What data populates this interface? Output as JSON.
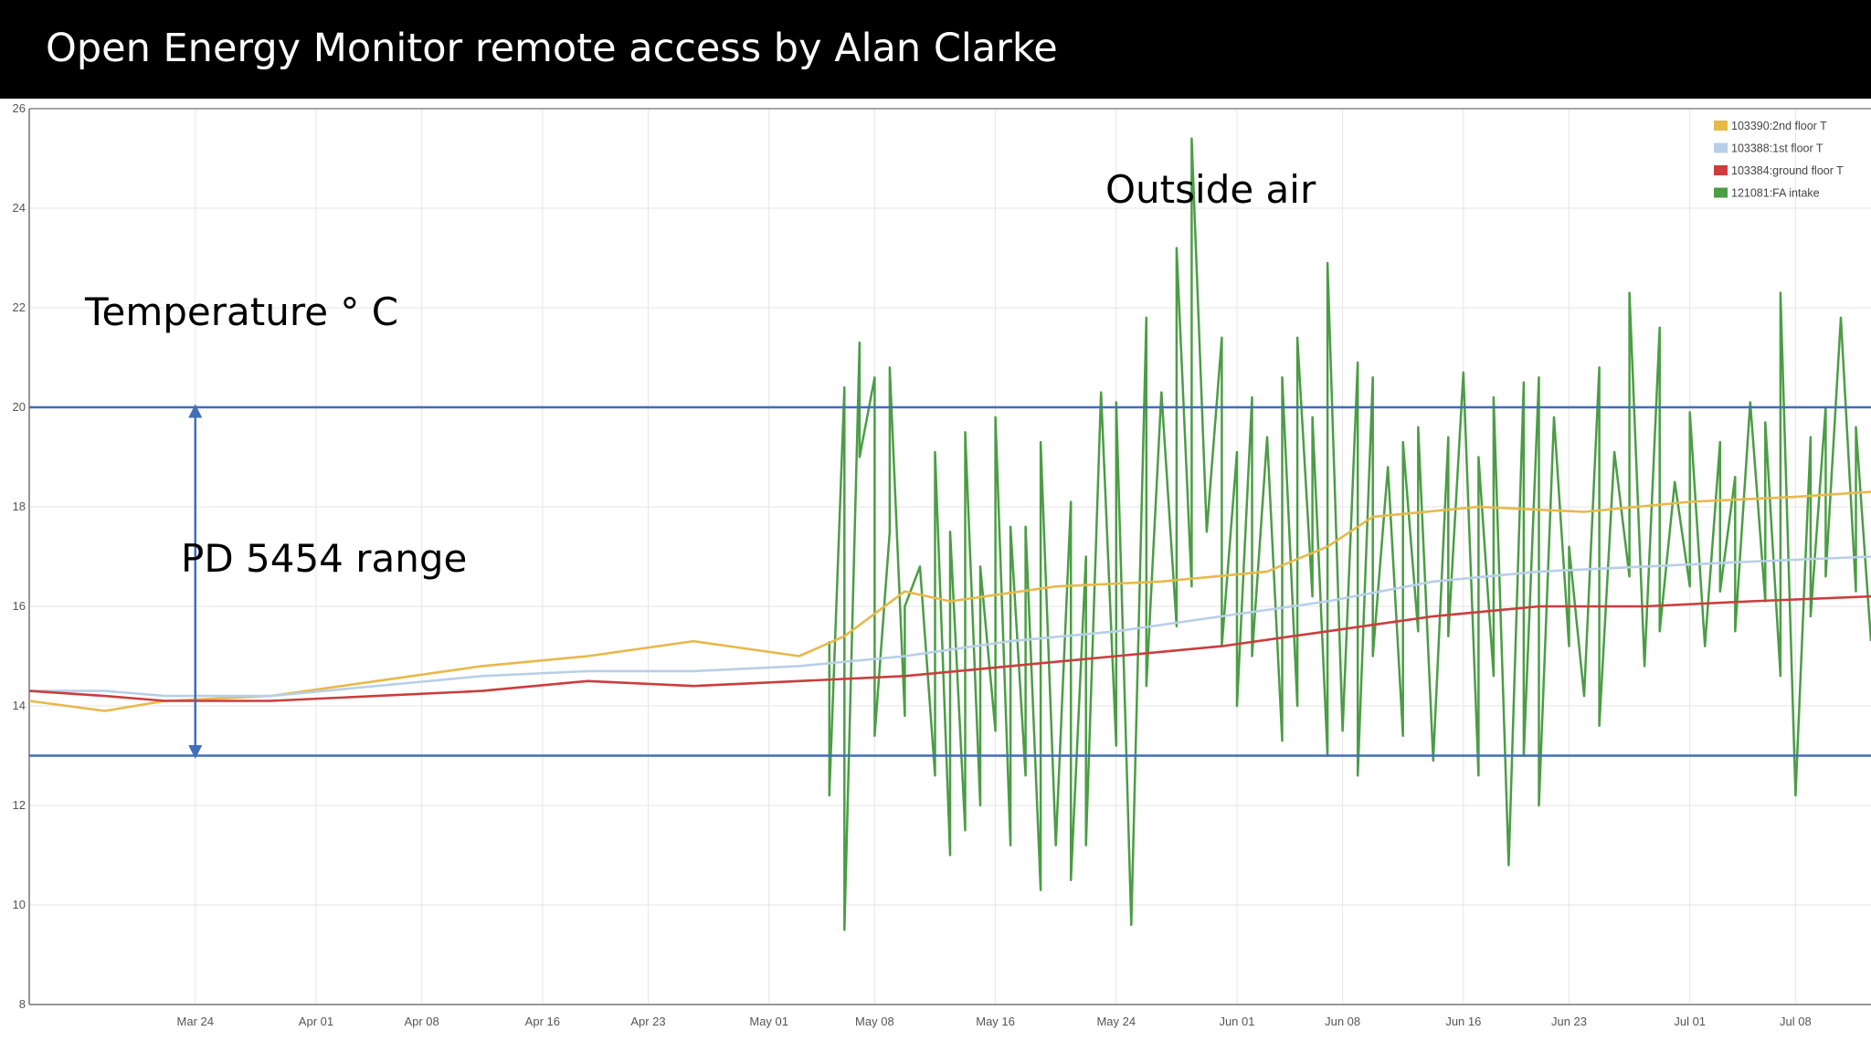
{
  "slide": {
    "title": "Open Energy Monitor remote access by Alan Clarke"
  },
  "colors": {
    "background": "#ffffff",
    "title_bar": "#000000",
    "grid": "#e6e6e6",
    "reference_lines": "#3f6fb6"
  },
  "chart_data": {
    "type": "line",
    "xaxis_type": "date",
    "xlim": [
      "2015-03-13",
      "2015-07-13"
    ],
    "ylim": [
      8,
      26
    ],
    "grid": true,
    "legend_position": "top-right",
    "x_ticks": [
      {
        "date": "2015-03-24",
        "label": "Mar 24"
      },
      {
        "date": "2015-04-01",
        "label": "Apr 01"
      },
      {
        "date": "2015-04-08",
        "label": "Apr 08"
      },
      {
        "date": "2015-04-16",
        "label": "Apr 16"
      },
      {
        "date": "2015-04-23",
        "label": "Apr 23"
      },
      {
        "date": "2015-05-01",
        "label": "May 01"
      },
      {
        "date": "2015-05-08",
        "label": "May 08"
      },
      {
        "date": "2015-05-16",
        "label": "May 16"
      },
      {
        "date": "2015-05-24",
        "label": "May 24"
      },
      {
        "date": "2015-06-01",
        "label": "Jun 01"
      },
      {
        "date": "2015-06-08",
        "label": "Jun 08"
      },
      {
        "date": "2015-06-16",
        "label": "Jun 16"
      },
      {
        "date": "2015-06-23",
        "label": "Jun 23"
      },
      {
        "date": "2015-07-01",
        "label": "Jul 01"
      },
      {
        "date": "2015-07-08",
        "label": "Jul 08"
      }
    ],
    "y_ticks": [
      "8",
      "10",
      "12",
      "14",
      "16",
      "18",
      "20",
      "22",
      "24",
      "26"
    ],
    "series": [
      {
        "name": "103390:2nd floor T",
        "color": "#e8b84a",
        "x": [
          "2015-03-13",
          "2015-03-18",
          "2015-03-22",
          "2015-03-29",
          "2015-04-05",
          "2015-04-12",
          "2015-04-19",
          "2015-04-26",
          "2015-05-03",
          "2015-05-06",
          "2015-05-10",
          "2015-05-13",
          "2015-05-20",
          "2015-05-27",
          "2015-06-03",
          "2015-06-07",
          "2015-06-10",
          "2015-06-17",
          "2015-06-24",
          "2015-07-01",
          "2015-07-08",
          "2015-07-13"
        ],
        "y": [
          14.1,
          13.9,
          14.1,
          14.2,
          14.5,
          14.8,
          15.0,
          15.3,
          15.0,
          15.4,
          16.3,
          16.1,
          16.4,
          16.5,
          16.7,
          17.2,
          17.8,
          18.0,
          17.9,
          18.1,
          18.2,
          18.3
        ]
      },
      {
        "name": "103388:1st floor T",
        "color": "#b8cfe8",
        "x": [
          "2015-03-13",
          "2015-03-18",
          "2015-03-22",
          "2015-03-29",
          "2015-04-05",
          "2015-04-12",
          "2015-04-19",
          "2015-04-26",
          "2015-05-03",
          "2015-05-10",
          "2015-05-17",
          "2015-05-24",
          "2015-05-31",
          "2015-06-07",
          "2015-06-14",
          "2015-06-21",
          "2015-06-28",
          "2015-07-05",
          "2015-07-13"
        ],
        "y": [
          14.3,
          14.3,
          14.2,
          14.2,
          14.4,
          14.6,
          14.7,
          14.7,
          14.8,
          15.0,
          15.3,
          15.5,
          15.8,
          16.1,
          16.5,
          16.7,
          16.8,
          16.9,
          17.0
        ]
      },
      {
        "name": "103384:ground floor T",
        "color": "#cc3d3d",
        "x": [
          "2015-03-13",
          "2015-03-18",
          "2015-03-22",
          "2015-03-29",
          "2015-04-05",
          "2015-04-12",
          "2015-04-19",
          "2015-04-26",
          "2015-05-03",
          "2015-05-10",
          "2015-05-17",
          "2015-05-24",
          "2015-05-31",
          "2015-06-07",
          "2015-06-14",
          "2015-06-21",
          "2015-06-28",
          "2015-07-05",
          "2015-07-13"
        ],
        "y": [
          14.3,
          14.2,
          14.1,
          14.1,
          14.2,
          14.3,
          14.5,
          14.4,
          14.5,
          14.6,
          14.8,
          15.0,
          15.2,
          15.5,
          15.8,
          16.0,
          16.0,
          16.1,
          16.2
        ]
      },
      {
        "name": "121081:FA intake",
        "color": "#4b9d45",
        "x": [
          "2015-05-05",
          "2015-05-05",
          "2015-05-06",
          "2015-05-06",
          "2015-05-07",
          "2015-05-07",
          "2015-05-08",
          "2015-05-08",
          "2015-05-09",
          "2015-05-09",
          "2015-05-10",
          "2015-05-10",
          "2015-05-11",
          "2015-05-12",
          "2015-05-12",
          "2015-05-13",
          "2015-05-13",
          "2015-05-14",
          "2015-05-14",
          "2015-05-15",
          "2015-05-15",
          "2015-05-16",
          "2015-05-16",
          "2015-05-17",
          "2015-05-17",
          "2015-05-18",
          "2015-05-18",
          "2015-05-19",
          "2015-05-19",
          "2015-05-20",
          "2015-05-21",
          "2015-05-21",
          "2015-05-22",
          "2015-05-22",
          "2015-05-23",
          "2015-05-24",
          "2015-05-24",
          "2015-05-25",
          "2015-05-26",
          "2015-05-26",
          "2015-05-27",
          "2015-05-28",
          "2015-05-28",
          "2015-05-29",
          "2015-05-29",
          "2015-05-30",
          "2015-05-31",
          "2015-05-31",
          "2015-06-01",
          "2015-06-01",
          "2015-06-02",
          "2015-06-02",
          "2015-06-03",
          "2015-06-04",
          "2015-06-04",
          "2015-06-05",
          "2015-06-05",
          "2015-06-06",
          "2015-06-06",
          "2015-06-07",
          "2015-06-07",
          "2015-06-08",
          "2015-06-09",
          "2015-06-09",
          "2015-06-10",
          "2015-06-10",
          "2015-06-11",
          "2015-06-12",
          "2015-06-12",
          "2015-06-13",
          "2015-06-13",
          "2015-06-14",
          "2015-06-15",
          "2015-06-15",
          "2015-06-16",
          "2015-06-17",
          "2015-06-17",
          "2015-06-18",
          "2015-06-18",
          "2015-06-19",
          "2015-06-20",
          "2015-06-20",
          "2015-06-21",
          "2015-06-21",
          "2015-06-22",
          "2015-06-23",
          "2015-06-23",
          "2015-06-24",
          "2015-06-25",
          "2015-06-25",
          "2015-06-26",
          "2015-06-27",
          "2015-06-27",
          "2015-06-28",
          "2015-06-29",
          "2015-06-29",
          "2015-06-30",
          "2015-07-01",
          "2015-07-01",
          "2015-07-02",
          "2015-07-03",
          "2015-07-03",
          "2015-07-04",
          "2015-07-04",
          "2015-07-05",
          "2015-07-06",
          "2015-07-06",
          "2015-07-07",
          "2015-07-07",
          "2015-07-08",
          "2015-07-09",
          "2015-07-09",
          "2015-07-10",
          "2015-07-10",
          "2015-07-11",
          "2015-07-12",
          "2015-07-12",
          "2015-07-13"
        ],
        "y": [
          15.3,
          12.2,
          20.4,
          9.5,
          21.3,
          19.0,
          20.6,
          13.4,
          17.5,
          20.8,
          13.8,
          16.0,
          16.8,
          12.6,
          19.1,
          11.0,
          17.5,
          11.5,
          19.5,
          12.0,
          16.8,
          13.5,
          19.8,
          11.2,
          17.6,
          12.6,
          17.6,
          10.3,
          19.3,
          11.2,
          18.1,
          10.5,
          17.0,
          11.2,
          20.3,
          13.2,
          20.1,
          9.6,
          21.8,
          14.4,
          20.3,
          15.6,
          23.2,
          16.4,
          25.4,
          17.5,
          21.4,
          15.2,
          19.1,
          14.0,
          20.2,
          15.0,
          19.4,
          13.3,
          20.6,
          14.0,
          21.4,
          16.2,
          19.8,
          13.0,
          22.9,
          13.5,
          20.9,
          12.6,
          20.6,
          15.0,
          18.8,
          13.4,
          19.3,
          15.5,
          19.6,
          12.9,
          19.4,
          15.4,
          20.7,
          12.6,
          19.0,
          14.6,
          20.2,
          10.8,
          20.5,
          13.0,
          20.6,
          12.0,
          19.8,
          15.2,
          17.2,
          14.2,
          20.8,
          13.6,
          19.1,
          16.6,
          22.3,
          14.8,
          21.6,
          15.5,
          18.5,
          16.4,
          19.9,
          15.2,
          19.3,
          16.3,
          18.6,
          15.5,
          20.1,
          16.1,
          19.7,
          14.6,
          22.3,
          12.2,
          19.4,
          15.8,
          20.0,
          16.6,
          21.8,
          16.3,
          19.6,
          15.3
        ]
      }
    ],
    "reference_lines": [
      20,
      13
    ],
    "annotations": [
      {
        "text": "Temperature ° C"
      },
      {
        "text": "PD 5454 range"
      },
      {
        "text": "Outside air"
      }
    ]
  }
}
